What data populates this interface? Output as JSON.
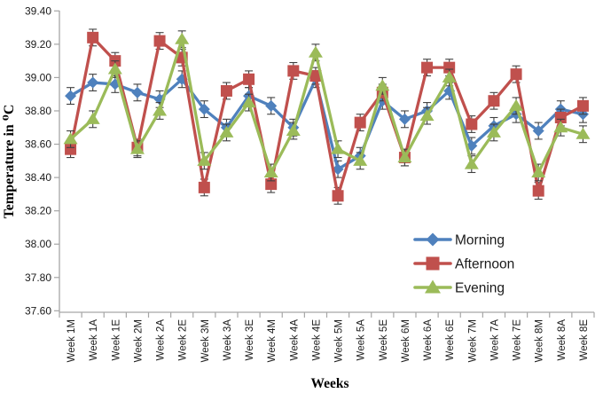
{
  "chart_data": {
    "type": "line",
    "xlabel": "Weeks",
    "ylabel": "Temperature in ⁰C",
    "ylim": [
      37.6,
      39.4
    ],
    "y_ticks": [
      "39.40",
      "39.20",
      "39.00",
      "38.80",
      "38.60",
      "38.40",
      "38.20",
      "38.00",
      "37.80",
      "37.60"
    ],
    "grid": false,
    "legend_position": "inside-right-lower",
    "error_bar": 0.05,
    "categories": [
      "Week 1M",
      "Week 1A",
      "Week 1E",
      "Week 2M",
      "Week 2A",
      "Week 2E",
      "Week 3M",
      "Week 3A",
      "Week 3E",
      "Week 4M",
      "Week 4A",
      "Week 4E",
      "Week 5M",
      "Week 5A",
      "Week 5E",
      "Week 6M",
      "Week 6A",
      "Week 6E",
      "Week 7M",
      "Week 7A",
      "Week 7E",
      "Week 8M",
      "Week 8A",
      "Week 8E"
    ],
    "series": [
      {
        "name": "Morning",
        "color": "#4F81BD",
        "marker": "diamond",
        "values": [
          38.89,
          38.97,
          38.96,
          38.91,
          38.87,
          38.99,
          38.81,
          38.7,
          38.89,
          38.83,
          38.7,
          38.99,
          38.45,
          38.53,
          38.86,
          38.75,
          38.8,
          38.92,
          38.59,
          38.71,
          38.78,
          38.68,
          38.81,
          38.78
        ]
      },
      {
        "name": "Afternoon",
        "color": "#C0504D",
        "marker": "square",
        "values": [
          38.57,
          39.24,
          39.1,
          38.58,
          39.22,
          39.12,
          38.34,
          38.92,
          38.99,
          38.36,
          39.04,
          39.01,
          38.29,
          38.73,
          38.91,
          38.52,
          39.06,
          39.06,
          38.72,
          38.86,
          39.02,
          38.32,
          38.76,
          38.83
        ]
      },
      {
        "name": "Evening",
        "color": "#9BBB59",
        "marker": "triangle",
        "values": [
          38.63,
          38.75,
          39.05,
          38.57,
          38.8,
          39.23,
          38.5,
          38.67,
          38.85,
          38.43,
          38.68,
          39.15,
          38.57,
          38.5,
          38.95,
          38.52,
          38.77,
          39.0,
          38.48,
          38.67,
          38.83,
          38.43,
          38.7,
          38.66
        ]
      }
    ],
    "error_bar_color": "#404040",
    "axis_color": "#A6A6A6"
  }
}
